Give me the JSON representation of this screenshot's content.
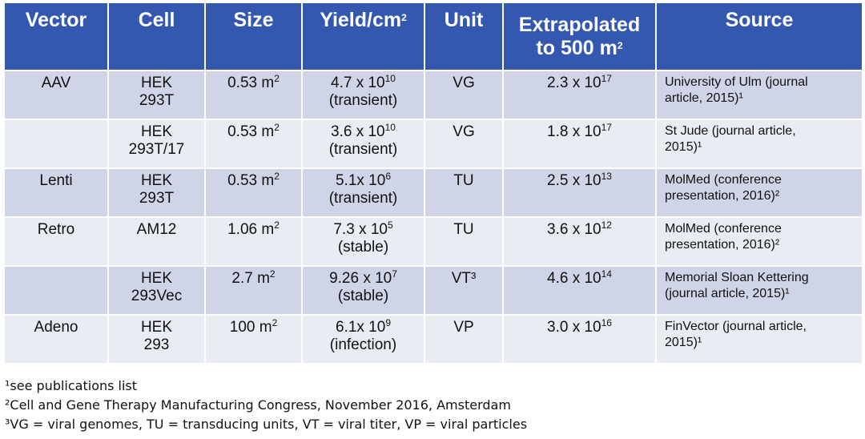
{
  "headers": {
    "vector": "Vector",
    "cell": "Cell",
    "size": "Size",
    "yield_base": "Yield/cm",
    "yield_exp": "2",
    "unit": "Unit",
    "extra_line1": "Extrapolated",
    "extra_line2_base": "to 500 m",
    "extra_line2_exp": "2",
    "source": "Source"
  },
  "rows": [
    {
      "vector": "AAV",
      "cell_line1": "HEK",
      "cell_line2": "293T",
      "size_base": "0.53 m",
      "size_exp": "2",
      "yield_base": "4.7 x 10",
      "yield_exp": "10",
      "yield_note": "(transient)",
      "unit": "VG",
      "extra_base": "2.3 x 10",
      "extra_exp": "17",
      "source_line1": "University of Ulm (journal",
      "source_line2": "article, 2015)¹"
    },
    {
      "vector": "",
      "cell_line1": "HEK",
      "cell_line2": "293T/17",
      "size_base": "0.53 m",
      "size_exp": "2",
      "yield_base": "3.6 x 10",
      "yield_exp": "10",
      "yield_note": "(transient)",
      "unit": "VG",
      "extra_base": "1.8 x 10",
      "extra_exp": "17",
      "source_line1": "St Jude (journal article,",
      "source_line2": "2015)¹"
    },
    {
      "vector": "Lenti",
      "cell_line1": "HEK",
      "cell_line2": "293T",
      "size_base": "0.53 m",
      "size_exp": "2",
      "yield_base": "5.1x 10",
      "yield_exp": "6",
      "yield_note": "(transient)",
      "unit": "TU",
      "extra_base": "2.5 x 10",
      "extra_exp": "13",
      "source_line1": "MolMed (conference",
      "source_line2": "presentation, 2016)²"
    },
    {
      "vector": "Retro",
      "cell_line1": "AM12",
      "cell_line2": "",
      "size_base": "1.06 m",
      "size_exp": "2",
      "yield_base": "7.3 x 10",
      "yield_exp": "5",
      "yield_note": "(stable)",
      "unit": "TU",
      "extra_base": "3.6 x 10",
      "extra_exp": "12",
      "source_line1": "MolMed (conference",
      "source_line2": "presentation, 2016)²"
    },
    {
      "vector": "",
      "cell_line1": "HEK",
      "cell_line2": "293Vec",
      "size_base": "2.7 m",
      "size_exp": "2",
      "yield_base": "9.26 x 10",
      "yield_exp": "7",
      "yield_note": "(stable)",
      "unit": "VT³",
      "extra_base": "4.6 x 10",
      "extra_exp": "14",
      "source_line1": "Memorial Sloan Kettering",
      "source_line2": "(journal article, 2015)¹"
    },
    {
      "vector": "Adeno",
      "cell_line1": "HEK",
      "cell_line2": "293",
      "size_base": "100 m",
      "size_exp": "2",
      "yield_base": "6.1x 10",
      "yield_exp": "9",
      "yield_note": "(infection)",
      "unit": "VP",
      "extra_base": "3.0 x 10",
      "extra_exp": "16",
      "source_line1": "FinVector (journal article,",
      "source_line2": "2015)¹"
    }
  ],
  "footnotes": [
    "¹see publications list",
    "²Cell and Gene Therapy Manufacturing Congress, November 2016, Amsterdam",
    "³VG = viral genomes, TU = transducing units, VT = viral titer, VP = viral particles"
  ],
  "colors": {
    "header_bg": "#3458b0",
    "row_dark": "#cfd5e6",
    "row_light": "#e9ecf3"
  }
}
